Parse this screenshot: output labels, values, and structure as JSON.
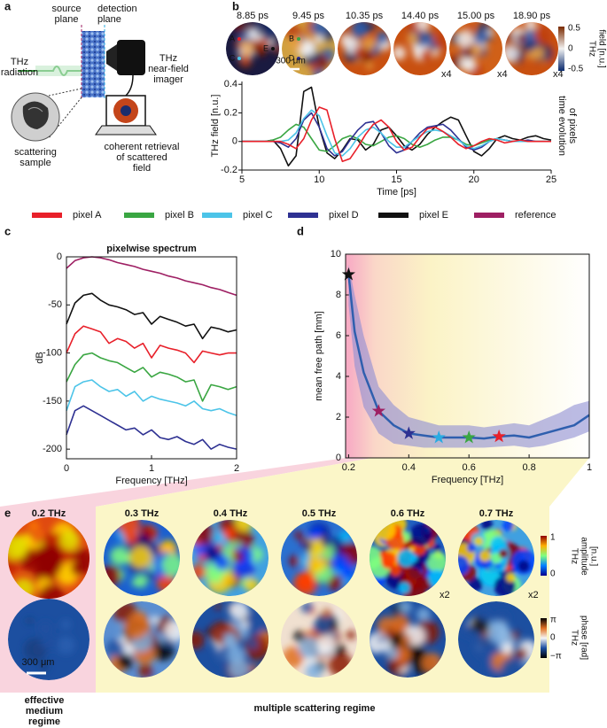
{
  "panel_labels": [
    "a",
    "b",
    "c",
    "d",
    "e"
  ],
  "panel_a": {
    "source_plane": [
      "source",
      "plane"
    ],
    "detection_plane": [
      "detection",
      "plane"
    ],
    "radiation": [
      "THz",
      "radiation"
    ],
    "imager": [
      "THz",
      "near-field",
      "imager"
    ],
    "sample": [
      "scattering",
      "sample"
    ],
    "retrieval": [
      "coherent retrieval",
      "of scattered",
      "field"
    ]
  },
  "panel_b": {
    "times": [
      "8.85 ps",
      "9.45 ps",
      "10.35 ps",
      "14.40 ps",
      "15.00 ps",
      "18.90 ps"
    ],
    "gains": [
      null,
      null,
      null,
      "x4",
      "x4",
      "x4"
    ],
    "pixels": [
      "A",
      "B",
      "C",
      "D",
      "E"
    ],
    "scale_label": "300 μm",
    "colorbar": {
      "ticks": [
        "0.5",
        "0",
        "-0.5"
      ],
      "label": [
        "THz",
        "field [n.u.]"
      ]
    }
  },
  "panel_e": {
    "frequencies": [
      "0.2 THz",
      "0.3 THz",
      "0.4 THz",
      "0.5 THz",
      "0.6 THz",
      "0.7 THz"
    ],
    "frequency_colors": [
      "#111111",
      "#9e1f63",
      "#2e3192",
      "#29abe2",
      "#3aa642",
      "#e8202a"
    ],
    "gains": [
      null,
      null,
      null,
      null,
      "x2",
      "x2"
    ],
    "scale_label": "300 μm",
    "amplitude_colorbar": {
      "ticks": [
        "1",
        "0"
      ],
      "label": [
        "THz",
        "amplitude",
        "[n.u.]"
      ]
    },
    "phase_colorbar": {
      "ticks": [
        "π",
        "0",
        "−π"
      ],
      "label": [
        "THz",
        "phase [rad]"
      ]
    },
    "regimes": [
      [
        "effective",
        "medium",
        "regime"
      ],
      [
        "multiple scattering regime"
      ]
    ]
  },
  "chart_data": [
    {
      "type": "line",
      "xlabel": "Time [ps]",
      "ylabel": "THz field [n.u.]",
      "y2_label": [
        "time evolution",
        "of pixels"
      ],
      "xlim": [
        5,
        25
      ],
      "xticks": [
        5,
        10,
        15,
        20,
        25
      ],
      "ylim": [
        -0.2,
        0.42
      ],
      "yticks": [
        -0.2,
        0,
        0.2,
        0.4
      ],
      "x": [
        5,
        5.5,
        6,
        6.5,
        7,
        7.5,
        8,
        8.5,
        9,
        9.5,
        10,
        10.5,
        11,
        11.5,
        12,
        12.5,
        13,
        13.5,
        14,
        14.5,
        15,
        15.5,
        16,
        16.5,
        17,
        17.5,
        18,
        18.5,
        19,
        19.5,
        20,
        20.5,
        21,
        21.5,
        22,
        22.5,
        23,
        23.5,
        24,
        24.5,
        25
      ],
      "series": [
        {
          "color": "#111111",
          "values": [
            0,
            0,
            0,
            0,
            0.01,
            -0.05,
            -0.17,
            -0.1,
            0.35,
            0.38,
            0.1,
            -0.08,
            -0.12,
            -0.06,
            0.02,
            0.01,
            -0.06,
            -0.02,
            0.08,
            0.1,
            0.04,
            -0.03,
            -0.06,
            -0.02,
            0.05,
            0.1,
            0.14,
            0.17,
            0.15,
            0.04,
            -0.07,
            -0.1,
            -0.05,
            0.02,
            0.04,
            0.02,
            0.01,
            0.03,
            0.04,
            0.02,
            0.01
          ]
        },
        {
          "color": "#3aa642",
          "values": [
            0,
            0,
            0,
            0,
            0.01,
            0.03,
            0.08,
            0.12,
            0.1,
            0.02,
            -0.06,
            -0.07,
            -0.03,
            0.02,
            0.04,
            0.02,
            -0.02,
            -0.03,
            0,
            0.03,
            0.04,
            0.02,
            -0.02,
            -0.04,
            -0.02,
            0.01,
            0.03,
            0.03,
            0.01,
            -0.02,
            -0.03,
            -0.01,
            0.01,
            0.02,
            0.01,
            0,
            0,
            0,
            0,
            0,
            0
          ]
        },
        {
          "color": "#2e3192",
          "values": [
            0,
            0,
            0,
            0,
            0,
            -0.01,
            -0.04,
            0.02,
            0.15,
            0.2,
            0.1,
            -0.05,
            -0.1,
            -0.07,
            0.01,
            0.08,
            0.13,
            0.14,
            0.06,
            -0.03,
            -0.08,
            -0.06,
            0,
            0.06,
            0.1,
            0.11,
            0.12,
            0.08,
            0.02,
            -0.04,
            -0.06,
            -0.04,
            0,
            0.02,
            0.01,
            0,
            0,
            0.01,
            0,
            0,
            0
          ]
        },
        {
          "color": "#4cc4e8",
          "values": [
            0,
            0,
            0,
            0,
            0,
            0,
            0.01,
            0.06,
            0.16,
            0.22,
            0.18,
            0.04,
            -0.08,
            -0.1,
            -0.05,
            0.03,
            0.08,
            0.1,
            0.06,
            0,
            -0.04,
            -0.04,
            0,
            0.04,
            0.07,
            0.08,
            0.07,
            0.04,
            0.01,
            -0.03,
            -0.05,
            -0.03,
            0,
            0.02,
            0.01,
            0,
            0,
            0,
            0,
            0,
            0
          ]
        },
        {
          "color": "#e8202a",
          "values": [
            0,
            0,
            0,
            0,
            0,
            0,
            -0.02,
            -0.05,
            0.02,
            0.15,
            0.24,
            0.22,
            0.02,
            -0.14,
            -0.12,
            -0.04,
            0.05,
            0.12,
            0.15,
            0.1,
            0,
            -0.06,
            -0.04,
            0.03,
            0.09,
            0.1,
            0.07,
            0.03,
            -0.02,
            -0.05,
            -0.03,
            0,
            0.02,
            0.01,
            -0.01,
            0,
            0.01,
            0,
            0,
            0,
            0
          ]
        }
      ]
    },
    {
      "type": "line",
      "title": "pixelwise spectrum",
      "xlabel": "Frequency [THz]",
      "ylabel": "dB",
      "frame": true,
      "xlim": [
        0,
        2
      ],
      "xticks": [
        0,
        1,
        2
      ],
      "ylim": [
        -210,
        0
      ],
      "yticks": [
        0,
        -50,
        -100,
        -150,
        -200
      ],
      "x": [
        0,
        0.1,
        0.2,
        0.3,
        0.4,
        0.5,
        0.6,
        0.7,
        0.8,
        0.9,
        1,
        1.1,
        1.2,
        1.3,
        1.4,
        1.5,
        1.6,
        1.7,
        1.8,
        1.9,
        2
      ],
      "series": [
        {
          "name": "pixel A",
          "color": "#e8202a",
          "values": [
            -100,
            -80,
            -72,
            -75,
            -78,
            -90,
            -85,
            -88,
            -95,
            -90,
            -105,
            -92,
            -95,
            -97,
            -100,
            -110,
            -98,
            -100,
            -102,
            -100,
            -100
          ]
        },
        {
          "name": "pixel B",
          "color": "#3aa642",
          "values": [
            -130,
            -112,
            -102,
            -100,
            -105,
            -108,
            -110,
            -115,
            -120,
            -115,
            -125,
            -120,
            -122,
            -125,
            -130,
            -128,
            -150,
            -133,
            -135,
            -138,
            -135
          ]
        },
        {
          "name": "pixel C",
          "color": "#4cc4e8",
          "values": [
            -160,
            -135,
            -130,
            -128,
            -135,
            -140,
            -138,
            -145,
            -140,
            -150,
            -145,
            -148,
            -150,
            -152,
            -155,
            -150,
            -158,
            -160,
            -158,
            -162,
            -165
          ]
        },
        {
          "name": "pixel D",
          "color": "#2e3192",
          "values": [
            -185,
            -160,
            -155,
            -160,
            -165,
            -170,
            -175,
            -180,
            -178,
            -185,
            -180,
            -188,
            -190,
            -187,
            -192,
            -195,
            -190,
            -200,
            -195,
            -198,
            -200
          ]
        },
        {
          "name": "pixel E",
          "color": "#111111",
          "values": [
            -70,
            -48,
            -40,
            -38,
            -45,
            -50,
            -52,
            -55,
            -60,
            -58,
            -70,
            -62,
            -65,
            -68,
            -72,
            -70,
            -85,
            -73,
            -75,
            -78,
            -76
          ]
        },
        {
          "name": "reference",
          "color": "#9e1f63",
          "values": [
            -12,
            -4,
            -1,
            0,
            -1,
            -3,
            -6,
            -8,
            -10,
            -13,
            -15,
            -17,
            -20,
            -22,
            -25,
            -27,
            -29,
            -32,
            -34,
            -37,
            -40
          ]
        }
      ]
    },
    {
      "type": "line",
      "xlabel": "Frequency [THz]",
      "ylabel": "mean free path [mm]",
      "frame": true,
      "xlim": [
        0.19,
        1
      ],
      "xticks": [
        0.2,
        0.4,
        0.6,
        0.8,
        1
      ],
      "ylim": [
        0,
        10
      ],
      "yticks": [
        0,
        2,
        4,
        6,
        8,
        10
      ],
      "x": [
        0.2,
        0.22,
        0.25,
        0.3,
        0.35,
        0.4,
        0.45,
        0.5,
        0.55,
        0.6,
        0.65,
        0.7,
        0.75,
        0.8,
        0.85,
        0.9,
        0.95,
        1
      ],
      "series": [
        {
          "color": "#2f5fae",
          "band_color": "#8d8ed4",
          "values": [
            9,
            6.2,
            4.2,
            2.3,
            1.6,
            1.2,
            1.1,
            1.0,
            1.0,
            1.0,
            0.95,
            1.05,
            1.1,
            1.0,
            1.2,
            1.4,
            1.6,
            2.1
          ],
          "lower": [
            7.5,
            4.5,
            2.5,
            1.2,
            0.7,
            0.6,
            0.5,
            0.5,
            0.5,
            0.5,
            0.5,
            0.55,
            0.6,
            0.5,
            0.6,
            0.8,
            1.0,
            1.3
          ],
          "upper": [
            9.5,
            8,
            6,
            3.5,
            2.6,
            2,
            1.8,
            1.6,
            1.6,
            1.6,
            1.5,
            1.6,
            1.7,
            1.6,
            1.9,
            2.2,
            2.6,
            2.8
          ],
          "marker_colors": [
            "#111111",
            null,
            null,
            "#9e1f63",
            null,
            "#2e3192",
            null,
            "#29abe2",
            null,
            "#3aa642",
            null,
            "#e8202a",
            null,
            null,
            null,
            null,
            null,
            null
          ]
        }
      ]
    }
  ]
}
